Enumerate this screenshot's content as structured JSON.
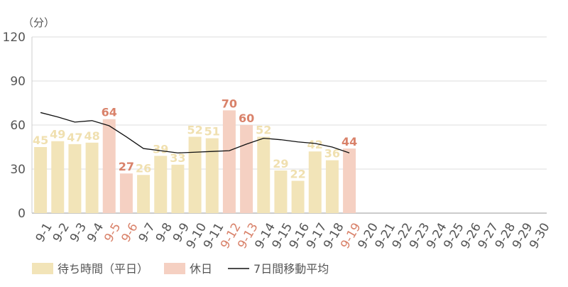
{
  "chart_data": {
    "type": "bar",
    "unit_label": "（分）",
    "categories": [
      "9-1",
      "9-2",
      "9-3",
      "9-4",
      "9-5",
      "9-6",
      "9-7",
      "9-8",
      "9-9",
      "9-10",
      "9-11",
      "9-12",
      "9-13",
      "9-14",
      "9-15",
      "9-16",
      "9-17",
      "9-18",
      "9-19",
      "9-20",
      "9-21",
      "9-22",
      "9-23",
      "9-24",
      "9-25",
      "9-26",
      "9-27",
      "9-28",
      "9-29",
      "9-30"
    ],
    "series": [
      {
        "name": "待ち時間（平日）",
        "color": "#f2e4b8",
        "label_color": "#f0e0b0",
        "values": [
          45,
          49,
          47,
          48,
          null,
          null,
          26,
          39,
          33,
          52,
          51,
          null,
          null,
          52,
          29,
          22,
          42,
          36,
          null,
          null,
          null,
          null,
          null,
          null,
          null,
          null,
          null,
          null,
          null,
          null
        ]
      },
      {
        "name": "休日",
        "color": "#f5d0c2",
        "label_color": "#d9826a",
        "values": [
          null,
          null,
          null,
          null,
          64,
          27,
          null,
          null,
          null,
          null,
          null,
          70,
          60,
          null,
          null,
          null,
          null,
          null,
          44,
          null,
          null,
          null,
          null,
          null,
          null,
          null,
          null,
          null,
          null,
          null
        ]
      },
      {
        "name": "7日間移動平均",
        "type": "line",
        "color": "#111111",
        "values": [
          68.5,
          65.5,
          62,
          63,
          59.5,
          52,
          44,
          42.5,
          41,
          41.5,
          42,
          42.5,
          47,
          51,
          50,
          48.5,
          47.5,
          45,
          41,
          null,
          null,
          null,
          null,
          null,
          null,
          null,
          null,
          null,
          null,
          null
        ]
      }
    ],
    "ylim": [
      0,
      120
    ],
    "yticks": [
      0,
      30,
      60,
      90,
      120
    ],
    "grid": true
  }
}
